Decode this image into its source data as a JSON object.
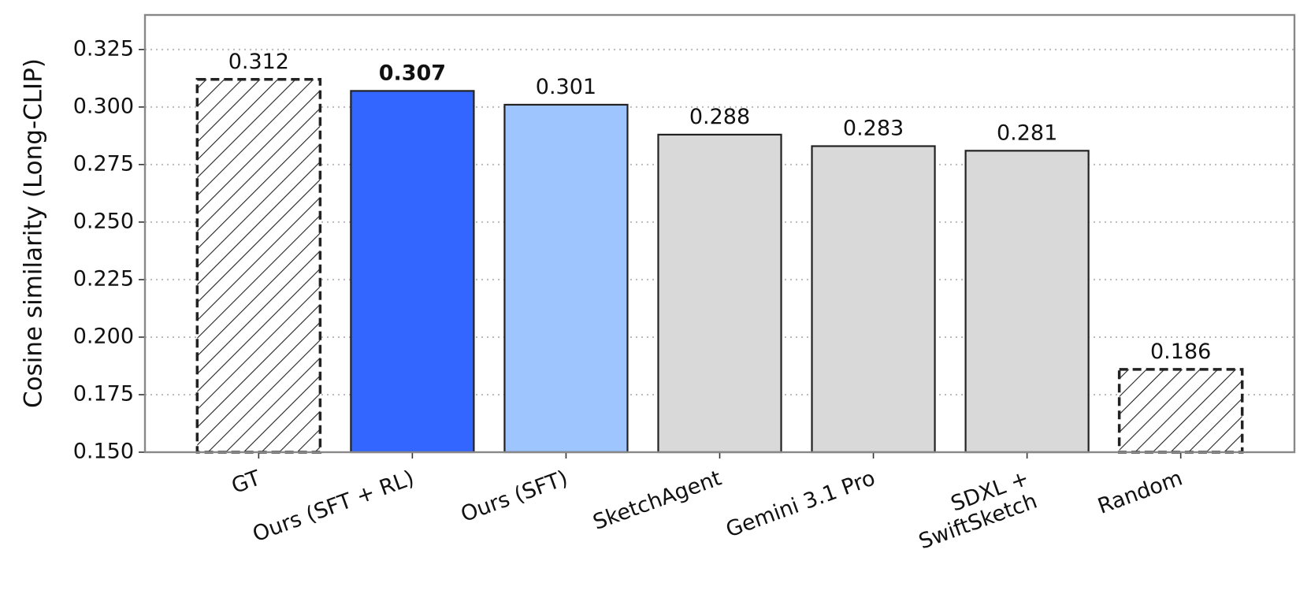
{
  "chart_data": {
    "type": "bar",
    "y_label": "Cosine similarity (Long-CLIP)",
    "categories": [
      "GT",
      "Ours (SFT + RL)",
      "Ours (SFT)",
      "SketchAgent",
      "Gemini 3.1 Pro",
      "SDXL +\nSwiftSketch",
      "Random"
    ],
    "values": [
      0.312,
      0.307,
      0.301,
      0.288,
      0.283,
      0.281,
      0.186
    ],
    "colors": [
      "#ffffff",
      "#3366ff",
      "#9ec5fe",
      "#d9d9d9",
      "#d9d9d9",
      "#d9d9d9",
      "#ffffff"
    ],
    "hatch": [
      true,
      false,
      false,
      false,
      false,
      false,
      true
    ],
    "value_label_bold": [
      false,
      true,
      false,
      false,
      false,
      false,
      false
    ],
    "ylim": [
      0.15,
      0.34
    ],
    "yticks": [
      {
        "value": 0.15,
        "label": "0.150"
      },
      0.175,
      {
        "value": 0.2,
        "label": "0.200"
      },
      0.225,
      {
        "value": 0.25,
        "label": "0.250"
      },
      0.275,
      {
        "value": 0.3,
        "label": "0.300"
      },
      0.325
    ],
    "grid": true
  }
}
